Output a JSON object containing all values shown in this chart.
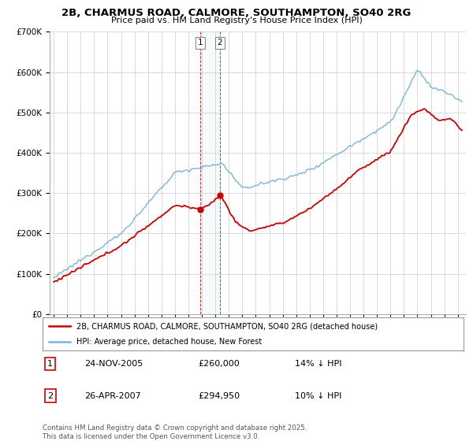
{
  "title": "2B, CHARMUS ROAD, CALMORE, SOUTHAMPTON, SO40 2RG",
  "subtitle": "Price paid vs. HM Land Registry's House Price Index (HPI)",
  "ylim": [
    0,
    700000
  ],
  "xlim_start": 1994.7,
  "xlim_end": 2025.6,
  "hpi_color": "#7ab4d8",
  "price_color": "#cc0000",
  "transaction1": {
    "date": "24-NOV-2005",
    "price": 260000,
    "label": "14% ↓ HPI",
    "num": "1",
    "year": 2005.9
  },
  "transaction2": {
    "date": "26-APR-2007",
    "price": 294950,
    "label": "10% ↓ HPI",
    "num": "2",
    "year": 2007.33
  },
  "legend_property": "2B, CHARMUS ROAD, CALMORE, SOUTHAMPTON, SO40 2RG (detached house)",
  "legend_hpi": "HPI: Average price, detached house, New Forest",
  "footnote": "Contains HM Land Registry data © Crown copyright and database right 2025.\nThis data is licensed under the Open Government Licence v3.0.",
  "background_color": "#ffffff",
  "grid_color": "#cccccc"
}
